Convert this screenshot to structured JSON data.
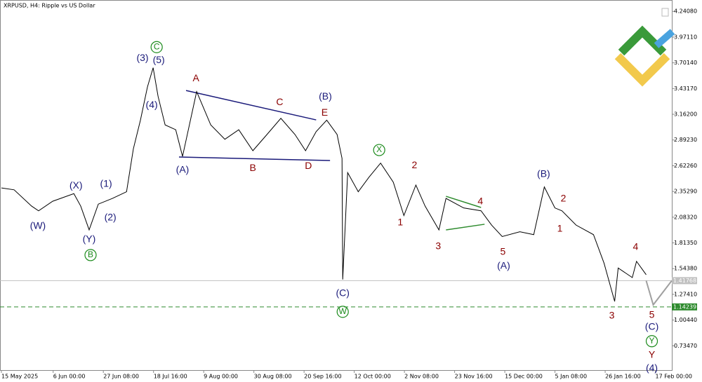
{
  "chart_data": {
    "type": "line",
    "title": "XRPUSD, H4:  Ripple vs US Dollar",
    "xlim": [
      0,
      285
    ],
    "ylim": [
      0.48,
      4.36
    ],
    "xticks": [
      {
        "value": 0,
        "label": "15 May 2025"
      },
      {
        "value": 22,
        "label": "6 Jun 00:00"
      },
      {
        "value": 43.33,
        "label": "27 Jun 08:00"
      },
      {
        "value": 64.67,
        "label": "18 Jul 16:00"
      },
      {
        "value": 86,
        "label": "9 Aug 00:00"
      },
      {
        "value": 107.33,
        "label": "30 Aug 08:00"
      },
      {
        "value": 128.67,
        "label": "20 Sep 16:00"
      },
      {
        "value": 150,
        "label": "12 Oct 00:00"
      },
      {
        "value": 171.33,
        "label": "2 Nov 08:00"
      },
      {
        "value": 192.67,
        "label": "23 Nov 16:00"
      },
      {
        "value": 214,
        "label": "15 Dec 00:00"
      },
      {
        "value": 235.33,
        "label": "5 Jan 08:00"
      },
      {
        "value": 256.67,
        "label": "26 Jan 16:00"
      },
      {
        "value": 278,
        "label": "17 Feb 00:00"
      }
    ],
    "yticks": [
      {
        "value": 4.2408,
        "label": "4.24080"
      },
      {
        "value": 3.9711,
        "label": "3.97110"
      },
      {
        "value": 3.7014,
        "label": "3.70140"
      },
      {
        "value": 3.4317,
        "label": "3.43170"
      },
      {
        "value": 3.162,
        "label": "3.16200"
      },
      {
        "value": 2.8923,
        "label": "2.89230"
      },
      {
        "value": 2.6226,
        "label": "2.62260"
      },
      {
        "value": 2.3529,
        "label": "2.35290"
      },
      {
        "value": 2.0832,
        "label": "2.08320"
      },
      {
        "value": 1.8135,
        "label": "1.81350"
      },
      {
        "value": 1.5438,
        "label": "1.54380"
      },
      {
        "value": 1.2741,
        "label": "1.27410"
      },
      {
        "value": 1.0044,
        "label": "1.00440"
      },
      {
        "value": 0.7347,
        "label": "0.73470"
      }
    ],
    "series": [
      {
        "color": "#000000",
        "x": [
          0,
          5.4,
          12.8,
          15.8,
          21.8,
          30.8,
          33.7,
          37.3,
          41.2,
          47.2,
          53.2,
          56.1,
          59.1,
          62.1,
          64.5,
          66.6,
          69.6,
          74.1,
          77,
          83,
          89,
          95,
          100.9,
          106.9,
          112.9,
          118.8,
          124.8,
          129.3,
          133.8,
          138.3,
          142.7,
          144.8,
          145.1,
          147.2,
          151.7,
          156.2,
          161.2,
          166.6,
          171.1,
          176.2,
          180.1,
          186,
          189,
          196.5,
          203.9,
          208.4,
          212.9,
          220.4,
          226.3,
          230.8,
          235.3,
          238.3,
          244.3,
          251.7,
          256.2,
          260.7,
          262.2,
          268.2,
          270,
          274.1
        ],
        "values": [
          2.39,
          2.37,
          2.2,
          2.15,
          2.25,
          2.33,
          2.2,
          1.95,
          2.22,
          2.28,
          2.35,
          2.8,
          3.1,
          3.45,
          3.65,
          3.35,
          3.05,
          3.0,
          2.72,
          3.4,
          3.05,
          2.9,
          3.0,
          2.78,
          2.95,
          3.12,
          2.95,
          2.78,
          2.98,
          3.1,
          2.95,
          2.7,
          1.43,
          2.55,
          2.35,
          2.5,
          2.65,
          2.45,
          2.1,
          2.42,
          2.2,
          1.95,
          2.28,
          2.18,
          2.15,
          2.0,
          1.88,
          1.93,
          1.9,
          2.4,
          2.18,
          2.15,
          2.0,
          1.9,
          1.6,
          1.2,
          1.55,
          1.45,
          1.62,
          1.48
        ]
      },
      {
        "color": "#a0a0a0",
        "x": [
          274.1,
          277.1,
          285
        ],
        "values": [
          1.41768,
          1.164,
          1.418
        ]
      }
    ],
    "hlines": [
      {
        "value": 1.41768,
        "label": "1.41768",
        "color": "#c0c0c0",
        "dashed": false
      },
      {
        "value": 1.14239,
        "label": "1.14239",
        "color": "#2e8b2e",
        "dashed": true
      }
    ],
    "trendlines": [
      {
        "color": "#1a1a7a",
        "x": [
          78.5,
          133.8
        ],
        "values": [
          3.411,
          3.103
        ]
      },
      {
        "color": "#1a1a7a",
        "x": [
          75.5,
          139.7
        ],
        "values": [
          2.714,
          2.677
        ]
      },
      {
        "color": "#2e8b2e",
        "x": [
          189,
          203.9
        ],
        "values": [
          2.302,
          2.185
        ]
      },
      {
        "color": "#2e8b2e",
        "x": [
          189,
          205.4
        ],
        "values": [
          1.95,
          2.009
        ]
      }
    ],
    "annotations": [
      {
        "text": "(W)",
        "x": 15.5,
        "y": 1.987,
        "color": "#1a1a7a"
      },
      {
        "text": "(X)",
        "x": 31.7,
        "y": 2.41,
        "color": "#1a1a7a"
      },
      {
        "text": "(1)",
        "x": 44.5,
        "y": 2.43,
        "color": "#1a1a7a"
      },
      {
        "text": "(2)",
        "x": 46.3,
        "y": 2.075,
        "color": "#1a1a7a"
      },
      {
        "text": "(Y)",
        "x": 37.3,
        "y": 1.847,
        "color": "#1a1a7a"
      },
      {
        "text": "B",
        "x": 37.9,
        "y": 1.686,
        "color": "#1a8a1a",
        "circled": true
      },
      {
        "text": "(3)",
        "x": 60,
        "y": 3.749,
        "color": "#1a1a7a"
      },
      {
        "text": "(5)",
        "x": 66.9,
        "y": 3.727,
        "color": "#1a1a7a"
      },
      {
        "text": "C",
        "x": 66,
        "y": 3.866,
        "color": "#1a8a1a",
        "circled": true
      },
      {
        "text": "(4)",
        "x": 63.9,
        "y": 3.257,
        "color": "#1a1a7a"
      },
      {
        "text": "(A)",
        "x": 77,
        "y": 2.574,
        "color": "#1a1a7a"
      },
      {
        "text": "A",
        "x": 82.7,
        "y": 3.536,
        "color": "#8b0000"
      },
      {
        "text": "B",
        "x": 106.9,
        "y": 2.596,
        "color": "#8b0000"
      },
      {
        "text": "C",
        "x": 118.3,
        "y": 3.286,
        "color": "#8b0000"
      },
      {
        "text": "D",
        "x": 130.5,
        "y": 2.618,
        "color": "#8b0000"
      },
      {
        "text": "E",
        "x": 137.4,
        "y": 3.176,
        "color": "#8b0000"
      },
      {
        "text": "(B)",
        "x": 137.7,
        "y": 3.345,
        "color": "#1a1a7a"
      },
      {
        "text": "(C)",
        "x": 145.1,
        "y": 1.282,
        "color": "#1a1a7a"
      },
      {
        "text": "W",
        "x": 145.1,
        "y": 1.091,
        "color": "#1a8a1a",
        "circled": true
      },
      {
        "text": "X",
        "x": 160.6,
        "y": 2.787,
        "color": "#1a8a1a",
        "circled": true
      },
      {
        "text": "2",
        "x": 175.6,
        "y": 2.625,
        "color": "#8b0000"
      },
      {
        "text": "1",
        "x": 169.6,
        "y": 2.024,
        "color": "#8b0000"
      },
      {
        "text": "3",
        "x": 185.7,
        "y": 1.774,
        "color": "#8b0000"
      },
      {
        "text": "4",
        "x": 203.6,
        "y": 2.244,
        "color": "#8b0000"
      },
      {
        "text": "5",
        "x": 213.2,
        "y": 1.715,
        "color": "#8b0000"
      },
      {
        "text": "(A)",
        "x": 213.5,
        "y": 1.568,
        "color": "#1a1a7a"
      },
      {
        "text": "(B)",
        "x": 230.5,
        "y": 2.53,
        "color": "#1a1a7a"
      },
      {
        "text": "2",
        "x": 238.9,
        "y": 2.273,
        "color": "#8b0000"
      },
      {
        "text": "1",
        "x": 237.4,
        "y": 1.957,
        "color": "#8b0000"
      },
      {
        "text": "3",
        "x": 259.5,
        "y": 1.047,
        "color": "#8b0000"
      },
      {
        "text": "4",
        "x": 269.6,
        "y": 1.766,
        "color": "#8b0000"
      },
      {
        "text": "5",
        "x": 276.5,
        "y": 1.054,
        "color": "#8b0000"
      },
      {
        "text": "(C)",
        "x": 276.5,
        "y": 0.929,
        "color": "#1a1a7a"
      },
      {
        "text": "Y",
        "x": 276.5,
        "y": 0.783,
        "color": "#1a8a1a",
        "circled": true
      },
      {
        "text": "Y",
        "x": 276.5,
        "y": 0.636,
        "color": "#8b0000"
      },
      {
        "text": "(4)",
        "x": 276.5,
        "y": 0.496,
        "color": "#1a1a7a"
      }
    ]
  }
}
